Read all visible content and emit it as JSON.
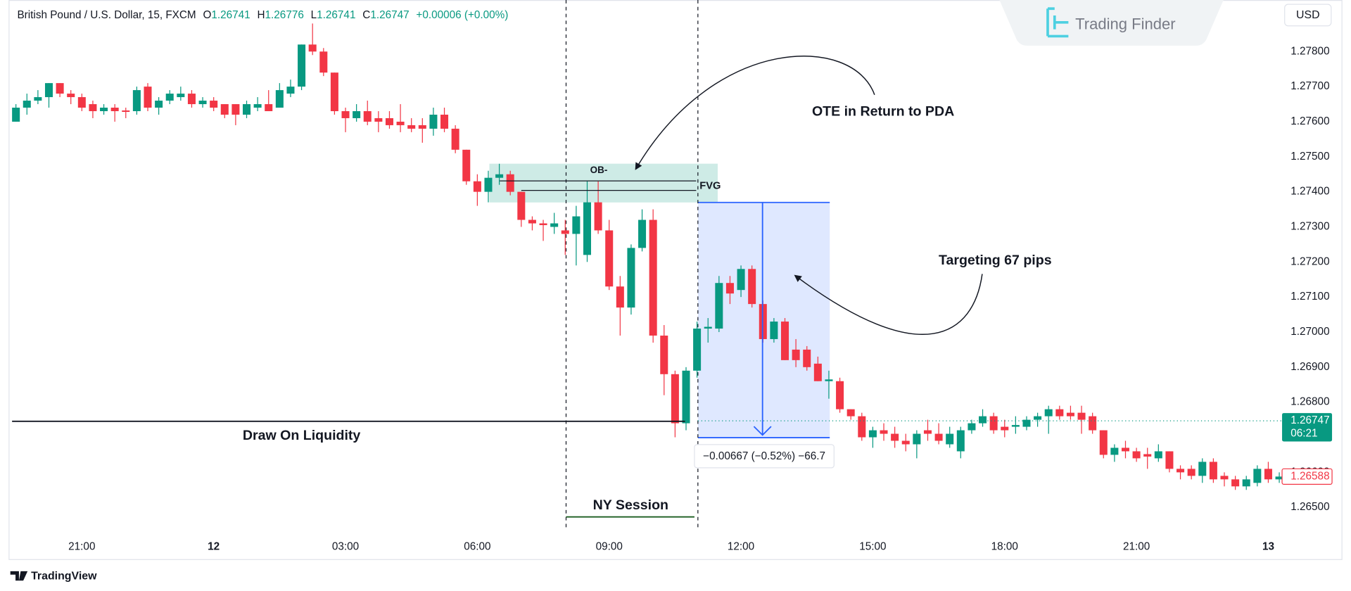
{
  "header": {
    "symbol": "British Pound / U.S. Dollar, 15, FXCM",
    "o_label": "O",
    "o": 1.26741,
    "h_label": "H",
    "h": 1.26776,
    "l_label": "L",
    "l": 1.26741,
    "c_label": "C",
    "c": 1.26747,
    "change": "+0.00006 (+0.00%)"
  },
  "branding": {
    "logo": "Trading Finder",
    "currency": "USD",
    "footer": "TradingView"
  },
  "chart_data": {
    "type": "candlestick",
    "categories": [
      null,
      null,
      null,
      null,
      null,
      null,
      "21:00",
      null,
      null,
      null,
      null,
      null,
      null,
      null,
      null,
      null,
      null,
      null,
      "12",
      null,
      null,
      null,
      null,
      null,
      null,
      null,
      null,
      null,
      null,
      null,
      "03:00",
      null,
      null,
      null,
      null,
      null,
      null,
      null,
      null,
      null,
      null,
      null,
      "06:00",
      null,
      null,
      null,
      null,
      null,
      null,
      null,
      null,
      null,
      null,
      null,
      "09:00",
      null,
      null,
      null,
      null,
      null,
      null,
      null,
      null,
      null,
      null,
      null,
      "12:00",
      null,
      null,
      null,
      null,
      null,
      null,
      null,
      null,
      null,
      null,
      null,
      "15:00",
      null,
      null,
      null,
      null,
      null,
      null,
      null,
      null,
      null,
      null,
      null,
      "18:00",
      null,
      null,
      null,
      null,
      null,
      null,
      null,
      null,
      null,
      null,
      null,
      "21:00",
      null,
      null,
      null,
      null,
      null,
      null,
      null,
      null,
      null,
      null,
      null,
      "13",
      null
    ],
    "open": [
      1.276,
      1.2764,
      1.2766,
      1.2767,
      1.2771,
      1.2768,
      1.2767,
      1.2765,
      1.2763,
      1.2764,
      1.27632,
      1.2763,
      1.277,
      1.2764,
      1.2766,
      1.2767,
      1.2768,
      1.2765,
      1.2766,
      1.2765,
      1.2765,
      1.2762,
      1.2764,
      1.2765,
      1.2764,
      1.2768,
      1.277,
      1.2782,
      1.278,
      1.2774,
      1.2763,
      1.2761,
      1.2763,
      1.2761,
      1.2761,
      1.276,
      1.2759,
      1.2759,
      1.2758,
      1.2762,
      1.2758,
      1.2752,
      1.2743,
      1.274,
      1.2744,
      1.2745,
      1.274,
      1.2732,
      1.2731,
      1.273,
      1.2729,
      1.2728,
      1.2722,
      1.2737,
      1.2729,
      1.2713,
      1.2707,
      1.2724,
      1.2732,
      1.2699,
      1.2688,
      1.2674,
      1.2689,
      1.2701,
      1.2701,
      1.2714,
      1.2712,
      1.2718,
      1.2708,
      1.2698,
      1.2703,
      1.2695,
      1.2695,
      1.2691,
      1.2686,
      1.2686,
      1.2678,
      1.2676,
      1.267,
      1.2672,
      1.2671,
      1.2669,
      1.2668,
      1.2672,
      1.2671,
      1.2668,
      1.2666,
      1.2672,
      1.2674,
      1.2676,
      1.2673,
      1.2673,
      1.2673,
      1.2675,
      1.2676,
      1.2678,
      1.2677,
      1.2677,
      1.2676,
      1.2672,
      1.2665,
      1.2667,
      1.2666,
      1.26652,
      1.2664,
      1.2666,
      1.2661,
      1.2661,
      1.2659,
      1.2663,
      1.2659,
      1.2658,
      1.2656,
      1.2657,
      1.2661,
      1.2658
    ],
    "high": [
      1.2765,
      1.2768,
      1.2769,
      1.2771,
      1.2771,
      1.2769,
      1.2768,
      1.2766,
      1.2765,
      1.2765,
      1.2764,
      1.277,
      1.2771,
      1.2767,
      1.2769,
      1.277,
      1.2769,
      1.2767,
      1.2767,
      1.2765,
      1.2765,
      1.2766,
      1.2767,
      1.2769,
      1.2771,
      1.2772,
      1.2782,
      1.2788,
      1.2781,
      1.2774,
      1.2764,
      1.2765,
      1.2766,
      1.2763,
      1.2763,
      1.2765,
      1.2761,
      1.2761,
      1.2764,
      1.2764,
      1.2759,
      1.2752,
      1.2745,
      1.2746,
      1.2748,
      1.2746,
      1.274,
      1.2733,
      1.2732,
      1.2734,
      1.2732,
      1.2736,
      1.2743,
      1.2743,
      1.2732,
      1.2716,
      1.2725,
      1.2735,
      1.2735,
      1.2702,
      1.2689,
      1.269,
      1.2703,
      1.2704,
      1.2716,
      1.2716,
      1.2719,
      1.2719,
      1.2709,
      1.2704,
      1.2704,
      1.2698,
      1.2696,
      1.2693,
      1.2689,
      1.2687,
      1.2678,
      1.2677,
      1.2673,
      1.2674,
      1.2673,
      1.2671,
      1.2672,
      1.2675,
      1.2674,
      1.2673,
      1.2673,
      1.2675,
      1.2678,
      1.2677,
      1.2675,
      1.2676,
      1.2676,
      1.2677,
      1.2679,
      1.2679,
      1.2679,
      1.2679,
      1.2677,
      1.2672,
      1.2668,
      1.2669,
      1.2667,
      1.2667,
      1.2668,
      1.2666,
      1.2662,
      1.2662,
      1.2664,
      1.2664,
      1.266,
      1.2659,
      1.2659,
      1.2662,
      1.2663,
      1.266
    ],
    "low": [
      1.276,
      1.2762,
      1.2765,
      1.2764,
      1.2767,
      1.2765,
      1.2763,
      1.2761,
      1.2762,
      1.276,
      1.2761,
      1.2762,
      1.2763,
      1.2762,
      1.2765,
      1.2766,
      1.2764,
      1.2764,
      1.2763,
      1.2761,
      1.2759,
      1.2761,
      1.2763,
      1.2763,
      1.2764,
      1.2767,
      1.2769,
      1.2779,
      1.2773,
      1.2762,
      1.2757,
      1.276,
      1.2759,
      1.2757,
      1.2758,
      1.2757,
      1.2757,
      1.2754,
      1.2756,
      1.2757,
      1.2751,
      1.2742,
      1.2736,
      1.2737,
      1.2742,
      1.2739,
      1.273,
      1.2729,
      1.2726,
      1.2728,
      1.2722,
      1.2719,
      1.272,
      1.2728,
      1.2712,
      1.2699,
      1.2705,
      1.2723,
      1.2697,
      1.2682,
      1.267,
      1.2672,
      1.2687,
      1.2697,
      1.27,
      1.2708,
      1.271,
      1.2707,
      1.2697,
      1.2697,
      1.2692,
      1.269,
      1.2689,
      1.2686,
      1.2681,
      1.2677,
      1.2675,
      1.2669,
      1.2667,
      1.2669,
      1.2667,
      1.2666,
      1.2664,
      1.2669,
      1.2668,
      1.2667,
      1.2664,
      1.2671,
      1.2673,
      1.2671,
      1.267,
      1.2671,
      1.2672,
      1.2673,
      1.2671,
      1.2675,
      1.2675,
      1.2671,
      1.2671,
      1.2664,
      1.2663,
      1.2664,
      1.2663,
      1.2661,
      1.2663,
      1.266,
      1.2658,
      1.2658,
      1.2657,
      1.2657,
      1.2656,
      1.2655,
      1.2655,
      1.2656,
      1.2657,
      1.2657
    ],
    "close": [
      1.2764,
      1.2766,
      1.2767,
      1.2771,
      1.2768,
      1.2767,
      1.2764,
      1.2763,
      1.2764,
      1.2763,
      1.27628,
      1.2769,
      1.2764,
      1.2766,
      1.2768,
      1.2768,
      1.2765,
      1.2766,
      1.2764,
      1.2762,
      1.2762,
      1.2765,
      1.2765,
      1.2763,
      1.2769,
      1.277,
      1.2782,
      1.278,
      1.2774,
      1.2763,
      1.2761,
      1.2763,
      1.276,
      1.276,
      1.2759,
      1.2759,
      1.2758,
      1.2758,
      1.2762,
      1.2758,
      1.2752,
      1.2743,
      1.274,
      1.2744,
      1.2745,
      1.274,
      1.2732,
      1.2731,
      1.27305,
      1.2731,
      1.2728,
      1.2733,
      1.2737,
      1.2729,
      1.2713,
      1.2707,
      1.2724,
      1.2732,
      1.2699,
      1.2688,
      1.2674,
      1.2689,
      1.2701,
      1.27015,
      1.2714,
      1.2711,
      1.2718,
      1.2708,
      1.2698,
      1.2703,
      1.2692,
      1.2692,
      1.269,
      1.2686,
      1.26865,
      1.2678,
      1.2676,
      1.267,
      1.2672,
      1.2671,
      1.2669,
      1.2668,
      1.2671,
      1.2671,
      1.2669,
      1.2671,
      1.2672,
      1.2674,
      1.2676,
      1.2672,
      1.2672,
      1.26735,
      1.2675,
      1.2676,
      1.2678,
      1.2676,
      1.2676,
      1.2675,
      1.2672,
      1.2665,
      1.2667,
      1.2666,
      1.2664,
      1.26645,
      1.2666,
      1.2661,
      1.266,
      1.2659,
      1.2663,
      1.2658,
      1.2658,
      1.2656,
      1.2658,
      1.2661,
      1.2658,
      1.26588
    ],
    "up_color": "#089981",
    "down_color": "#f23645",
    "ylim": [
      1.26355,
      1.27947
    ],
    "yticks": [
      {
        "value": 1.265,
        "label": "1.26500"
      },
      {
        "value": 1.266,
        "label": "1.26600"
      },
      {
        "value": 1.267,
        "label": "1.26700"
      },
      {
        "value": 1.268,
        "label": "1.26800"
      },
      {
        "value": 1.269,
        "label": "1.26900"
      },
      {
        "value": 1.27,
        "label": "1.27000"
      },
      {
        "value": 1.271,
        "label": "1.27100"
      },
      {
        "value": 1.272,
        "label": "1.27200"
      },
      {
        "value": 1.273,
        "label": "1.27300"
      },
      {
        "value": 1.274,
        "label": "1.27400"
      },
      {
        "value": 1.275,
        "label": "1.27500"
      },
      {
        "value": 1.276,
        "label": "1.27600"
      },
      {
        "value": 1.277,
        "label": "1.27700"
      },
      {
        "value": 1.278,
        "label": "1.27800"
      }
    ],
    "price_markers": [
      {
        "value": 1.26747,
        "countdown": "06:21",
        "color": "#089981",
        "style": "filled"
      },
      {
        "value": 1.26588,
        "color": "#f23645",
        "style": "outline"
      }
    ],
    "annotations": {
      "ote": "OTE in Return to PDA",
      "target": "Targeting 67 pips",
      "liquidity": "Draw On Liquidity",
      "session": "NY Session",
      "ob": "OB-",
      "fvg": "FVG",
      "measure": "−0.00667 (−0.52%) −66.7"
    }
  }
}
